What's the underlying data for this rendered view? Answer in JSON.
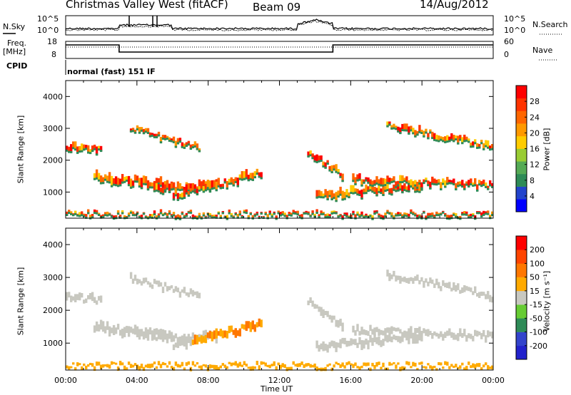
{
  "header": {
    "station": "Christmas Valley West (fitACF)",
    "beam": "Beam 09",
    "date": "14/Aug/2012"
  },
  "side_labels": {
    "nsky": "N.Sky",
    "nsearch": "N.Search",
    "freq": "Freq.",
    "freq_unit": "[MHz]",
    "nave": "Nave",
    "cpid": "CPID",
    "cpid_value": "normal (fast) 151 IF"
  },
  "noise_axis": {
    "ticks": [
      "10^5",
      "10^0"
    ]
  },
  "freq_axis": {
    "left_ticks": [
      "18",
      "8"
    ],
    "right_ticks": [
      "60",
      "0"
    ]
  },
  "colors": {
    "power": [
      "#0000ff",
      "#2244cc",
      "#2e8b57",
      "#55aa55",
      "#99cc33",
      "#ffcc00",
      "#ff9900",
      "#ff6600",
      "#ff3300",
      "#ff0000"
    ],
    "velocity": [
      "#2222cc",
      "#3344cc",
      "#2e8b57",
      "#66cc33",
      "#c8c8c0",
      "#ffaa00",
      "#ff7700",
      "#ff4400",
      "#ff0000"
    ]
  },
  "chart_data": [
    {
      "type": "heatmap",
      "parameter": "Power",
      "ylabel": "Slant Range [km]",
      "xlabel": "",
      "x_ticks": [
        "00:00",
        "04:00",
        "08:00",
        "12:00",
        "16:00",
        "20:00",
        "00:00"
      ],
      "y_ticks": [
        "1000",
        "2000",
        "3000",
        "4000"
      ],
      "ylim": [
        180,
        4500
      ],
      "colorbar": {
        "label": "Power [dB]",
        "ticks": [
          "28",
          "24",
          "20",
          "16",
          "12",
          "8",
          "4"
        ]
      }
    },
    {
      "type": "heatmap",
      "parameter": "Velocity",
      "ylabel": "Slant Range [km]",
      "xlabel": "Time UT",
      "x_ticks": [
        "00:00",
        "04:00",
        "08:00",
        "12:00",
        "16:00",
        "20:00",
        "00:00"
      ],
      "y_ticks": [
        "1000",
        "2000",
        "3000",
        "4000"
      ],
      "ylim": [
        180,
        4500
      ],
      "colorbar": {
        "label": "Velocity [m s⁻¹]",
        "ticks": [
          "200",
          "100",
          "50",
          "15",
          "-15",
          "-50",
          "-100",
          "-200"
        ]
      }
    }
  ]
}
